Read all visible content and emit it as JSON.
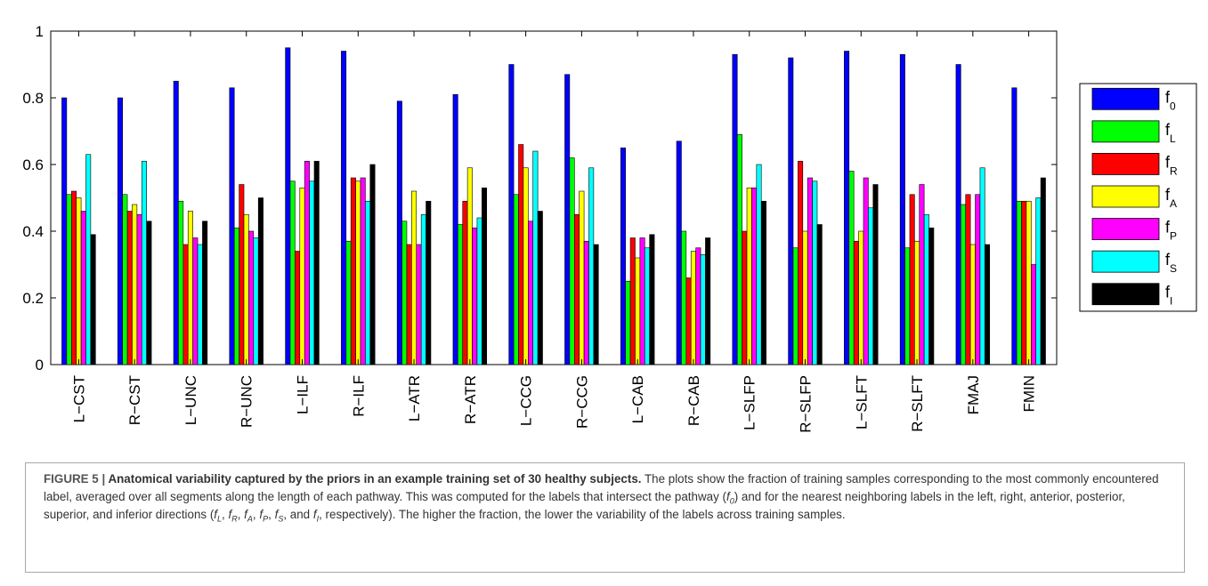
{
  "chart_data": {
    "type": "bar",
    "categories": [
      "L−CST",
      "R−CST",
      "L−UNC",
      "R−UNC",
      "L−ILF",
      "R−ILF",
      "L−ATR",
      "R−ATR",
      "L−CCG",
      "R−CCG",
      "L−CAB",
      "R−CAB",
      "L−SLFP",
      "R−SLFP",
      "L−SLFT",
      "R−SLFT",
      "FMAJ",
      "FMIN"
    ],
    "series": [
      {
        "name": "f",
        "sub": "0",
        "color": "#0000ff",
        "values": [
          0.8,
          0.8,
          0.85,
          0.83,
          0.95,
          0.94,
          0.79,
          0.81,
          0.9,
          0.87,
          0.65,
          0.67,
          0.93,
          0.92,
          0.94,
          0.93,
          0.9,
          0.83
        ]
      },
      {
        "name": "f",
        "sub": "L",
        "color": "#00ff00",
        "values": [
          0.51,
          0.51,
          0.49,
          0.41,
          0.55,
          0.37,
          0.43,
          0.42,
          0.51,
          0.62,
          0.25,
          0.4,
          0.69,
          0.35,
          0.58,
          0.35,
          0.48,
          0.49
        ]
      },
      {
        "name": "f",
        "sub": "R",
        "color": "#ff0000",
        "values": [
          0.52,
          0.46,
          0.36,
          0.54,
          0.34,
          0.56,
          0.36,
          0.49,
          0.66,
          0.45,
          0.38,
          0.26,
          0.4,
          0.61,
          0.37,
          0.51,
          0.51,
          0.49
        ]
      },
      {
        "name": "f",
        "sub": "A",
        "color": "#ffff00",
        "values": [
          0.5,
          0.48,
          0.46,
          0.45,
          0.53,
          0.55,
          0.52,
          0.59,
          0.59,
          0.52,
          0.32,
          0.34,
          0.53,
          0.4,
          0.4,
          0.37,
          0.36,
          0.49
        ]
      },
      {
        "name": "f",
        "sub": "P",
        "color": "#ff00ff",
        "values": [
          0.46,
          0.45,
          0.38,
          0.4,
          0.61,
          0.56,
          0.36,
          0.41,
          0.43,
          0.37,
          0.38,
          0.35,
          0.53,
          0.56,
          0.56,
          0.54,
          0.51,
          0.3
        ]
      },
      {
        "name": "f",
        "sub": "S",
        "color": "#00ffff",
        "values": [
          0.63,
          0.61,
          0.36,
          0.38,
          0.55,
          0.49,
          0.45,
          0.44,
          0.64,
          0.59,
          0.35,
          0.33,
          0.6,
          0.55,
          0.47,
          0.45,
          0.59,
          0.5
        ]
      },
      {
        "name": "f",
        "sub": "I",
        "color": "#000000",
        "values": [
          0.39,
          0.43,
          0.43,
          0.5,
          0.61,
          0.6,
          0.49,
          0.53,
          0.46,
          0.36,
          0.39,
          0.38,
          0.49,
          0.42,
          0.54,
          0.41,
          0.36,
          0.56
        ]
      }
    ],
    "yticks": [
      "0",
      "0.2",
      "0.4",
      "0.6",
      "0.8",
      "1"
    ],
    "ylim": [
      0,
      1
    ],
    "legend_position": "right",
    "grid": false
  },
  "caption": {
    "figure_label": "FIGURE 5 | ",
    "lead": "Anatomical variability captured by the priors in an example training set of 30 healthy subjects.",
    "t1": " The plots show the fraction of training samples corresponding to the most commonly encountered label, averaged over all segments along the length of each pathway. This was computed for the labels that intersect the pathway (",
    "f0_sub": "0",
    "t2": ") and for the nearest neighboring labels in the left, right, anterior, posterior, superior, and inferior directions (",
    "s_L": "L",
    "s_R": "R",
    "s_A": "A",
    "s_P": "P",
    "s_S": "S",
    "s_I": "I",
    "t3": ", respectively). The higher the fraction, the lower the variability of the labels across training samples.",
    "f_letter": "f",
    "and_text": ", and ",
    "comma": ", "
  }
}
